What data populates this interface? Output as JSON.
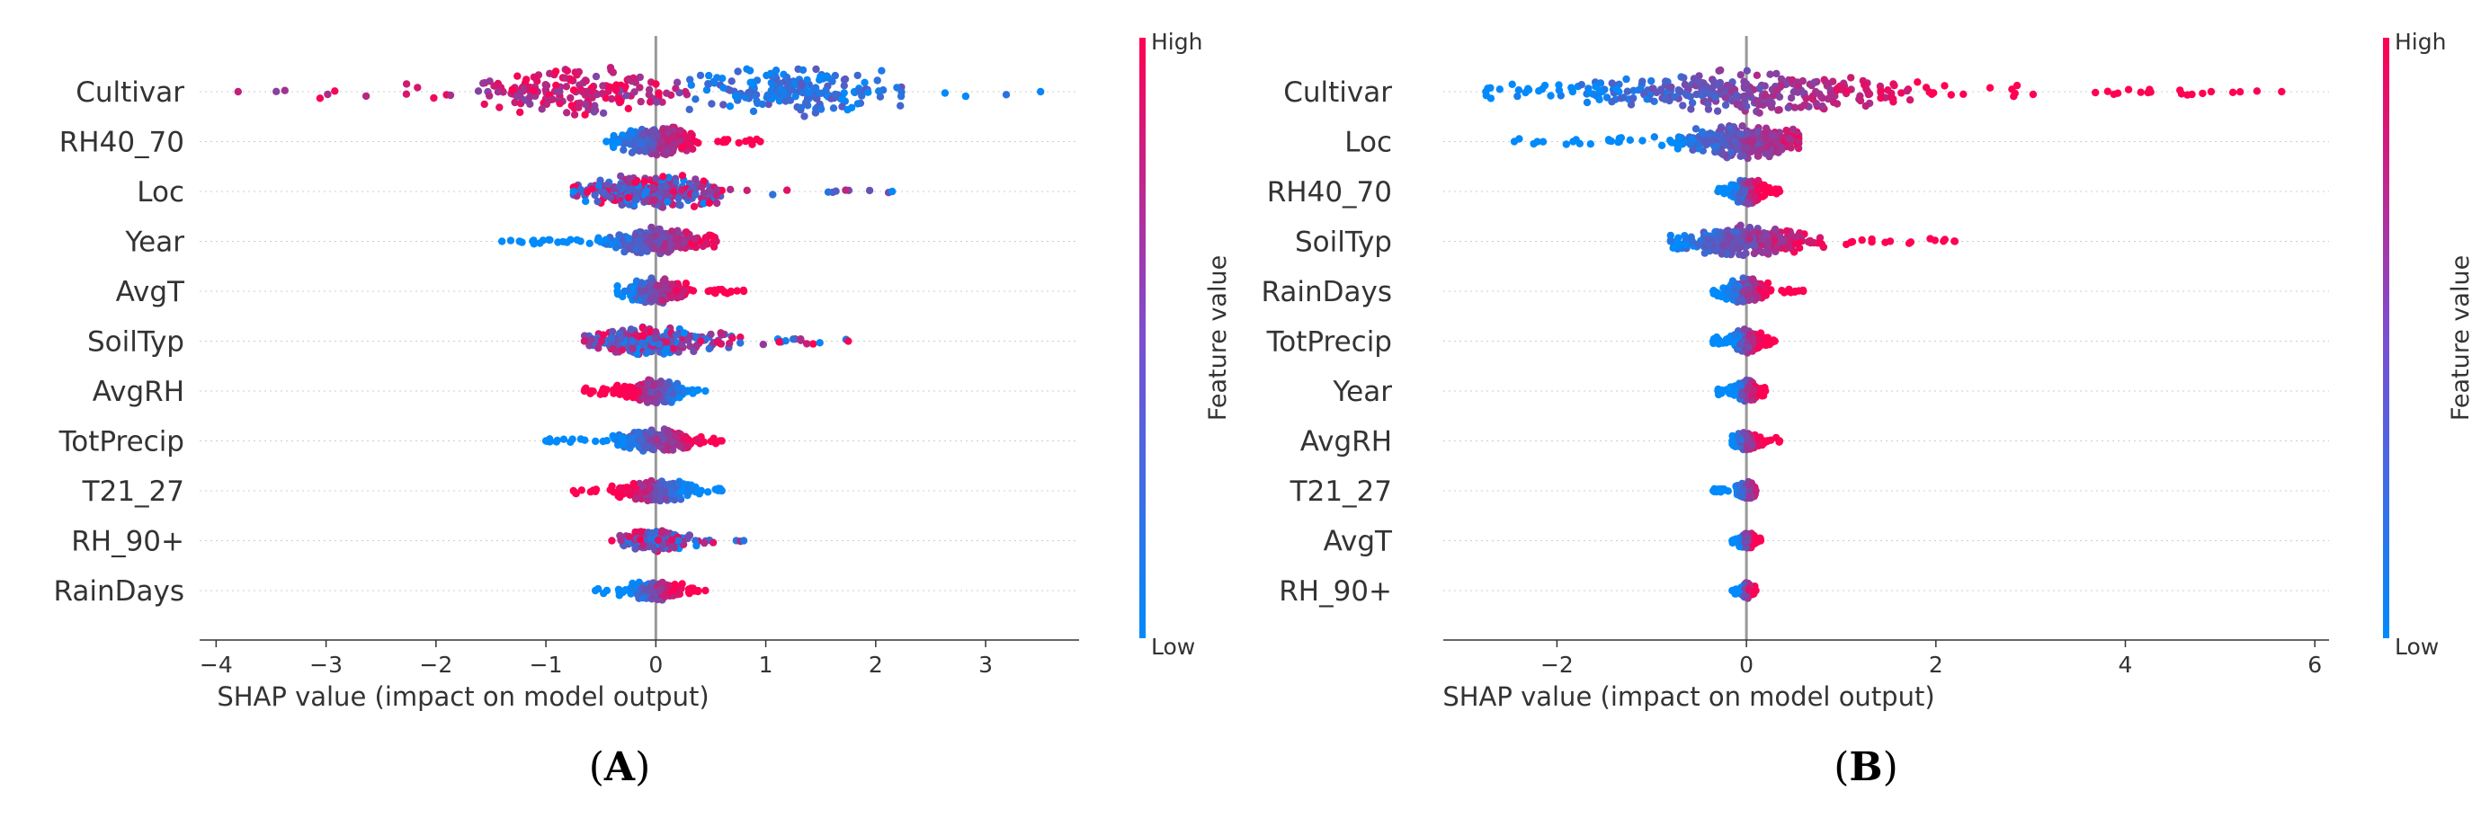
{
  "colors": {
    "low": "#1e88e5",
    "high": "#ff0d57",
    "grid": "#cccccc",
    "zero": "#999999",
    "axis": "#333333"
  },
  "chart_data": [
    {
      "type": "scatter",
      "panel_label": "A",
      "title": "",
      "xlabel": "SHAP value (impact on model output)",
      "ylabel": "",
      "xlim": [
        -4.15,
        3.85
      ],
      "xticks": [
        -4,
        -3,
        -2,
        -1,
        0,
        1,
        2,
        3
      ],
      "xtick_labels": [
        "−4",
        "−3",
        "−2",
        "−1",
        "0",
        "1",
        "2",
        "3"
      ],
      "colorbar": {
        "title": "Feature value",
        "high_label": "High",
        "low_label": "Low"
      },
      "features": [
        {
          "name": "Cultivar",
          "min": -3.8,
          "max": 3.5,
          "mode": "bimodal",
          "modes": [
            -0.7,
            1.2
          ],
          "trend": "bimodal",
          "width": 1.6
        },
        {
          "name": "RH40_70",
          "min": -0.45,
          "max": 0.95,
          "mode": 0.0,
          "trend": "pos",
          "width": 0.9
        },
        {
          "name": "Loc",
          "min": -0.75,
          "max": 2.15,
          "mode": 0.0,
          "trend": "mixed",
          "width": 1.0
        },
        {
          "name": "Year",
          "min": -1.4,
          "max": 0.55,
          "mode": 0.0,
          "trend": "pos",
          "width": 0.75
        },
        {
          "name": "AvgT",
          "min": -0.35,
          "max": 0.8,
          "mode": 0.0,
          "trend": "pos",
          "width": 0.7
        },
        {
          "name": "SoilTyp",
          "min": -0.65,
          "max": 1.75,
          "mode": 0.0,
          "trend": "mixed",
          "width": 0.85
        },
        {
          "name": "AvgRH",
          "min": -0.65,
          "max": 0.45,
          "mode": 0.0,
          "trend": "neg",
          "width": 0.7
        },
        {
          "name": "TotPrecip",
          "min": -1.0,
          "max": 0.6,
          "mode": 0.0,
          "trend": "pos",
          "width": 0.6
        },
        {
          "name": "T21_27",
          "min": -0.75,
          "max": 0.6,
          "mode": 0.0,
          "trend": "neg",
          "width": 0.6
        },
        {
          "name": "RH_90+",
          "min": -0.4,
          "max": 0.8,
          "mode": 0.0,
          "trend": "mixed",
          "width": 0.55
        },
        {
          "name": "RainDays",
          "min": -0.55,
          "max": 0.45,
          "mode": 0.0,
          "trend": "pos",
          "width": 0.5
        }
      ]
    },
    {
      "type": "scatter",
      "panel_label": "B",
      "title": "",
      "xlabel": "SHAP value (impact on model output)",
      "ylabel": "",
      "xlim": [
        -3.2,
        6.15
      ],
      "xticks": [
        -2,
        0,
        2,
        4,
        6
      ],
      "xtick_labels": [
        "−2",
        "0",
        "2",
        "4",
        "6"
      ],
      "colorbar": {
        "title": "Feature value",
        "high_label": "High",
        "low_label": "Low"
      },
      "features": [
        {
          "name": "Cultivar",
          "min": -2.75,
          "max": 5.65,
          "mode": 0.0,
          "trend": "pos",
          "width": 1.3
        },
        {
          "name": "Loc",
          "min": -2.45,
          "max": 0.55,
          "mode": 0.0,
          "trend": "pos",
          "width": 1.1
        },
        {
          "name": "RH40_70",
          "min": -0.3,
          "max": 0.35,
          "mode": 0.0,
          "trend": "pos",
          "width": 0.8
        },
        {
          "name": "SoilTyp",
          "min": -0.8,
          "max": 2.2,
          "mode": 0.0,
          "trend": "pos",
          "width": 0.9
        },
        {
          "name": "RainDays",
          "min": -0.35,
          "max": 0.6,
          "mode": 0.0,
          "trend": "pos",
          "width": 0.7
        },
        {
          "name": "TotPrecip",
          "min": -0.35,
          "max": 0.3,
          "mode": 0.0,
          "trend": "pos",
          "width": 0.6
        },
        {
          "name": "Year",
          "min": -0.3,
          "max": 0.2,
          "mode": 0.0,
          "trend": "pos",
          "width": 0.55
        },
        {
          "name": "AvgRH",
          "min": -0.15,
          "max": 0.35,
          "mode": 0.0,
          "trend": "pos",
          "width": 0.45
        },
        {
          "name": "T21_27",
          "min": -0.35,
          "max": 0.1,
          "mode": 0.0,
          "trend": "pos",
          "width": 0.4
        },
        {
          "name": "AvgT",
          "min": -0.15,
          "max": 0.15,
          "mode": 0.0,
          "trend": "pos",
          "width": 0.35
        },
        {
          "name": "RH_90+",
          "min": -0.15,
          "max": 0.1,
          "mode": 0.0,
          "trend": "pos",
          "width": 0.3
        }
      ]
    }
  ]
}
